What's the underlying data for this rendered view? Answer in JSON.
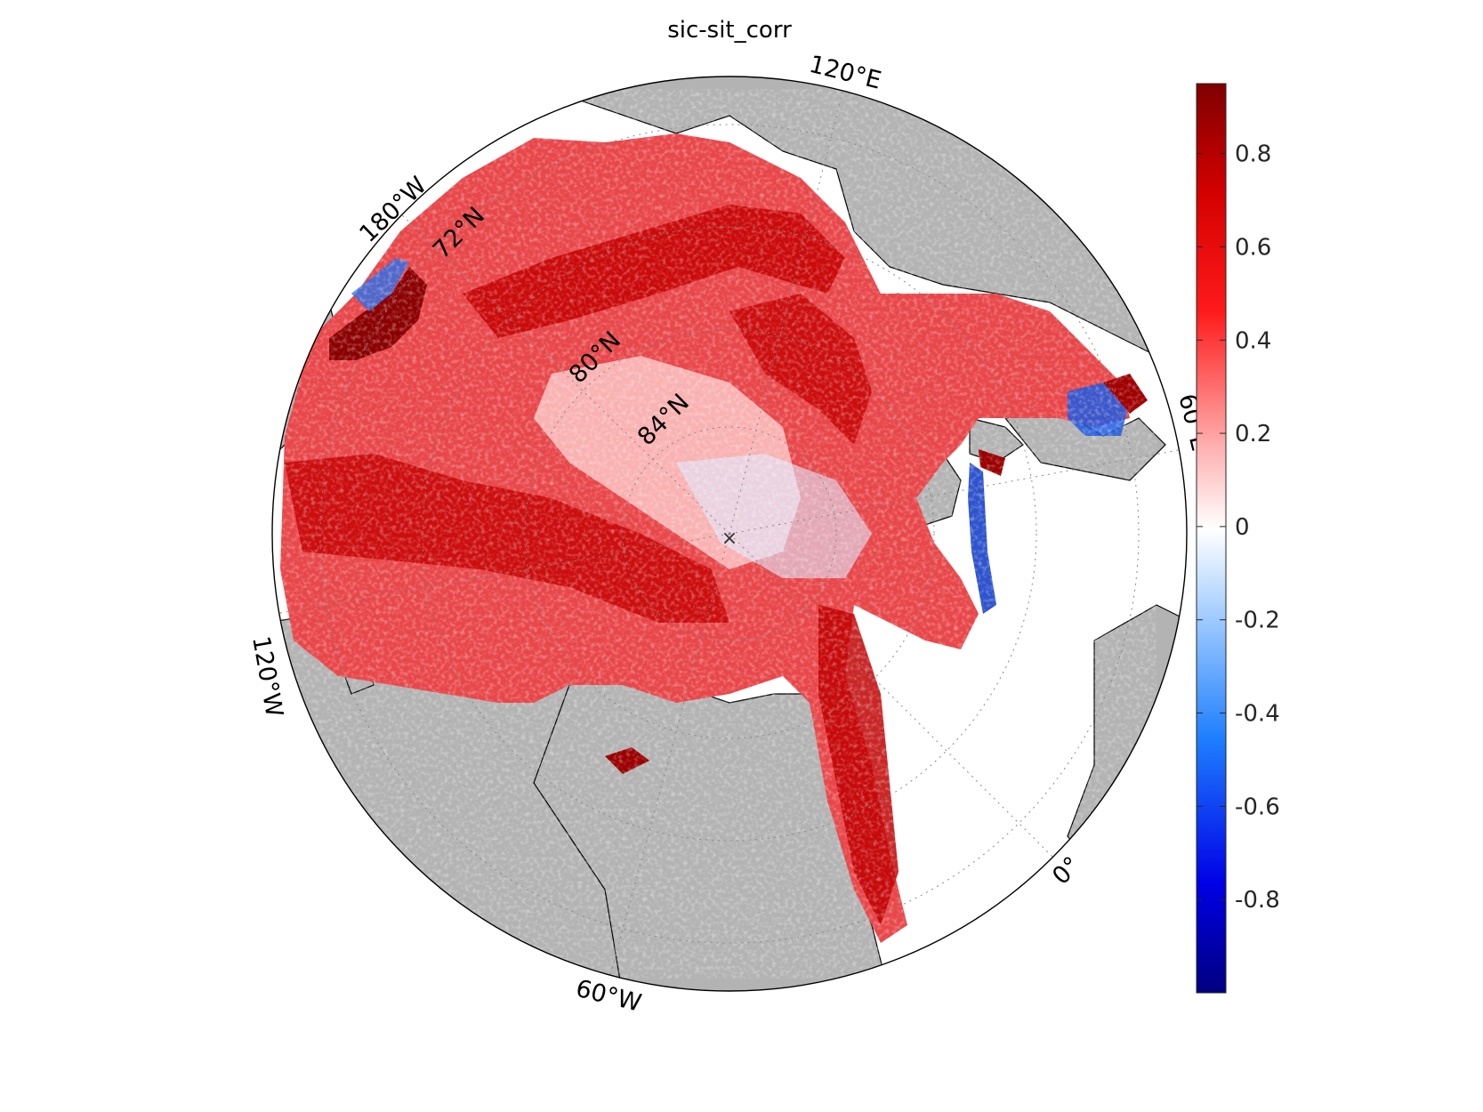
{
  "figure": {
    "title": "sic-sit_corr"
  },
  "map": {
    "projection": "north-polar-stereographic",
    "land_color": "#b3b3b3",
    "ocean_color": "#ffffff",
    "longitude_labels": [
      "120°E",
      "180°W",
      "60°E",
      "120°W",
      "0°",
      "60°W"
    ],
    "latitude_labels": [
      "72°N",
      "80°N",
      "84°N"
    ],
    "field_name": "sic-sit_corr",
    "field_description": "correlation field over Arctic sea-ice, predominantly positive (red)"
  },
  "colorbar": {
    "colormap": "blue-white-red",
    "range": [
      -1,
      0.95
    ],
    "ticks": [
      "0.8",
      "0.6",
      "0.4",
      "0.2",
      "0",
      "-0.2",
      "-0.4",
      "-0.6",
      "-0.8"
    ],
    "colors": {
      "min": "#00007f",
      "mid": "#ffffff",
      "max": "#7f0000"
    }
  }
}
